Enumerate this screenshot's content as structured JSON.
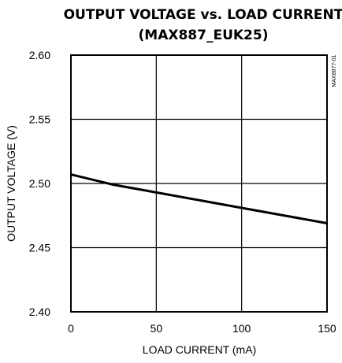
{
  "chart_data": {
    "type": "line",
    "title": "OUTPUT VOLTAGE vs. LOAD CURRENT",
    "subtitle": "(MAX887_EUK25)",
    "xlabel": "LOAD CURRENT (mA)",
    "ylabel": "OUTPUT VOLTAGE (V)",
    "xlim": [
      0,
      150
    ],
    "ylim": [
      2.4,
      2.6
    ],
    "x_ticks": [
      "0",
      "50",
      "100",
      "150"
    ],
    "y_ticks": [
      "2.60",
      "2.55",
      "2.50",
      "2.45",
      "2.40"
    ],
    "grid": true,
    "side_note": "MAX8877-01",
    "series": [
      {
        "x": [
          0,
          25,
          50,
          75,
          100,
          125,
          150
        ],
        "y": [
          2.507,
          2.499,
          2.493,
          2.487,
          2.481,
          2.475,
          2.469
        ]
      }
    ]
  }
}
